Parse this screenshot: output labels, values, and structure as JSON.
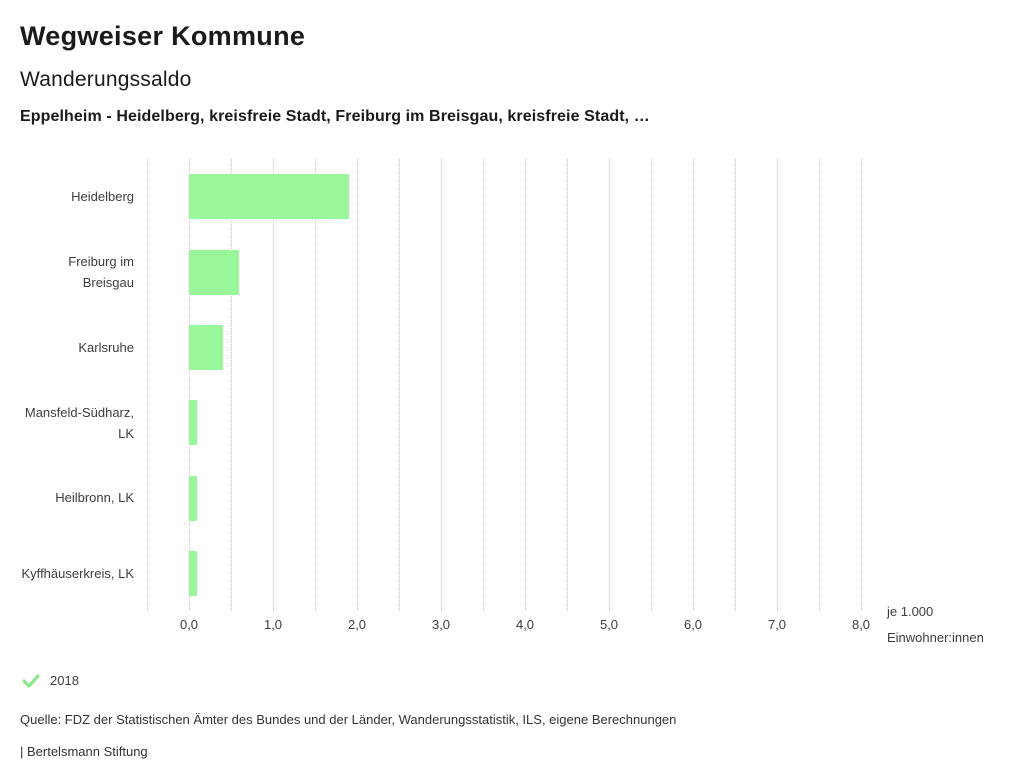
{
  "header": {
    "title": "Wegweiser Kommune",
    "subtitle": "Wanderungssaldo",
    "description": "Eppelheim - Heidelberg, kreisfreie Stadt, Freiburg im Breisgau, kreisfreie Stadt, …"
  },
  "chart_data": {
    "type": "bar",
    "orientation": "horizontal",
    "categories": [
      "Heidelberg",
      "Freiburg im Breisgau",
      "Karlsruhe",
      "Mansfeld-Südharz, LK",
      "Heilbronn, LK",
      "Kyffhäuserkreis, LK"
    ],
    "series": [
      {
        "name": "2018",
        "values": [
          1.9,
          0.6,
          0.4,
          0.1,
          0.1,
          0.1
        ]
      }
    ],
    "xlim": [
      -0.5,
      8.0
    ],
    "xtick_values": [
      0,
      1,
      2,
      3,
      4,
      5,
      6,
      7,
      8
    ],
    "xtick_labels": [
      "0,0",
      "1,0",
      "2,0",
      "3,0",
      "4,0",
      "5,0",
      "6,0",
      "7,0",
      "8,0"
    ],
    "gridline_step": 0.5,
    "grid": "dotted-vertical",
    "unit_label": "je 1.000 Einwohner:innen",
    "bar_color": "#99f799",
    "grid_color": "#c4c4c4",
    "legend_position": "bottom-left"
  },
  "legend": {
    "year": "2018",
    "check_color": "#8ce68c"
  },
  "footer": {
    "source": "Quelle: FDZ der Statistischen Ämter des Bundes und der Länder, Wanderungsstatistik, ILS, eigene Berechnungen",
    "branding": "| Bertelsmann Stiftung"
  }
}
